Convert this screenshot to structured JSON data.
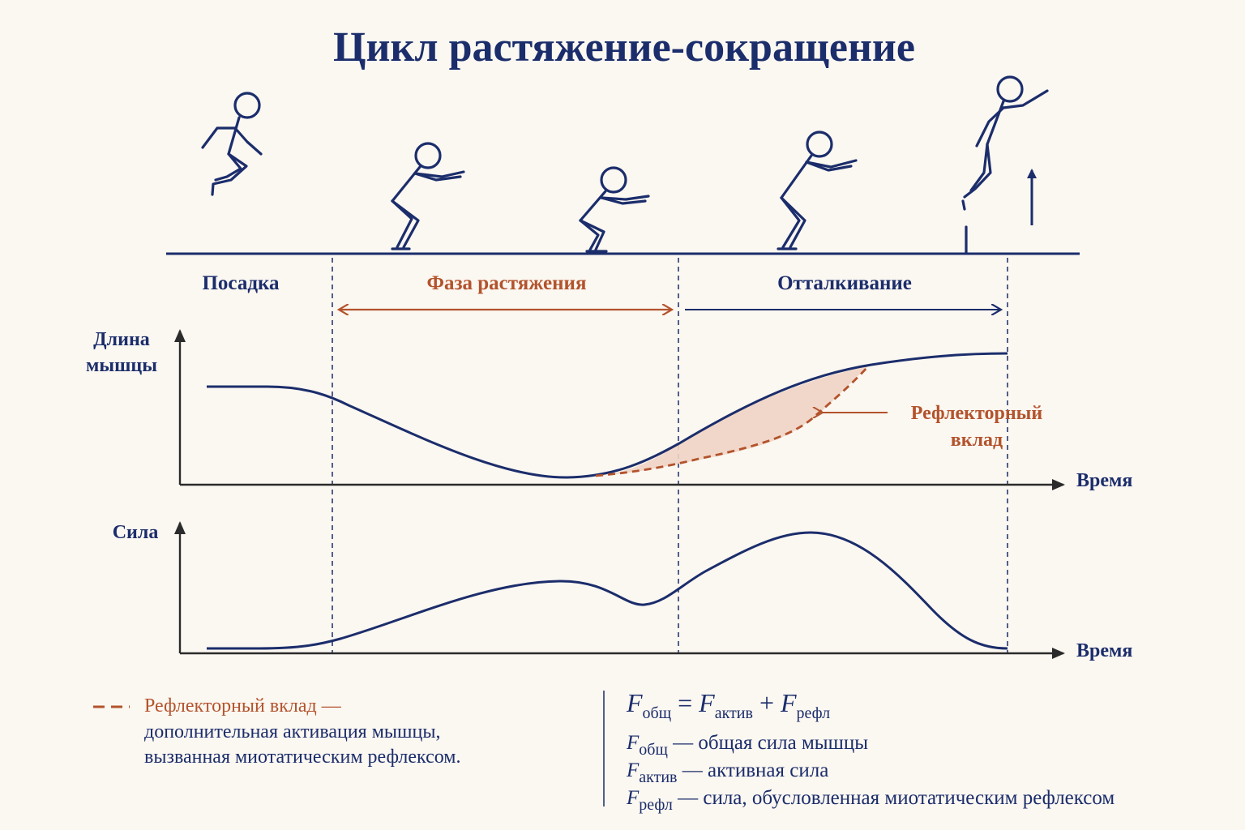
{
  "title": "Цикл растяжение-сокращение",
  "phases": {
    "landing": "Посадка",
    "stretch": "Фаза растяжения",
    "push_off": "Отталкивание"
  },
  "length_chart": {
    "ylabel_line1": "Длина",
    "ylabel_line2": "мышцы",
    "xlabel": "Время",
    "annotation_line1": "Рефлекторный",
    "annotation_line2": "вклад"
  },
  "force_chart": {
    "ylabel": "Сила",
    "xlabel": "Время"
  },
  "legend": {
    "line1": "Рефлекторный вклад —",
    "line2": "дополнительная активация мышцы,",
    "line3": "вызванная миотатическим рефлексом."
  },
  "formula": {
    "F": "F",
    "total_sub": "общ",
    "active_sub": "актив",
    "reflex_sub": "рефл",
    "eq": " = ",
    "plus": " + ",
    "total_desc": " — общая сила мышцы",
    "active_desc": " — активная сила",
    "reflex_desc": " — сила, обусловленная миотатическим рефлексом"
  },
  "colors": {
    "navy": "#1b2d6b",
    "rust": "#b3532c",
    "fill": "#f0d3c4",
    "background": "#fbf7f1"
  }
}
